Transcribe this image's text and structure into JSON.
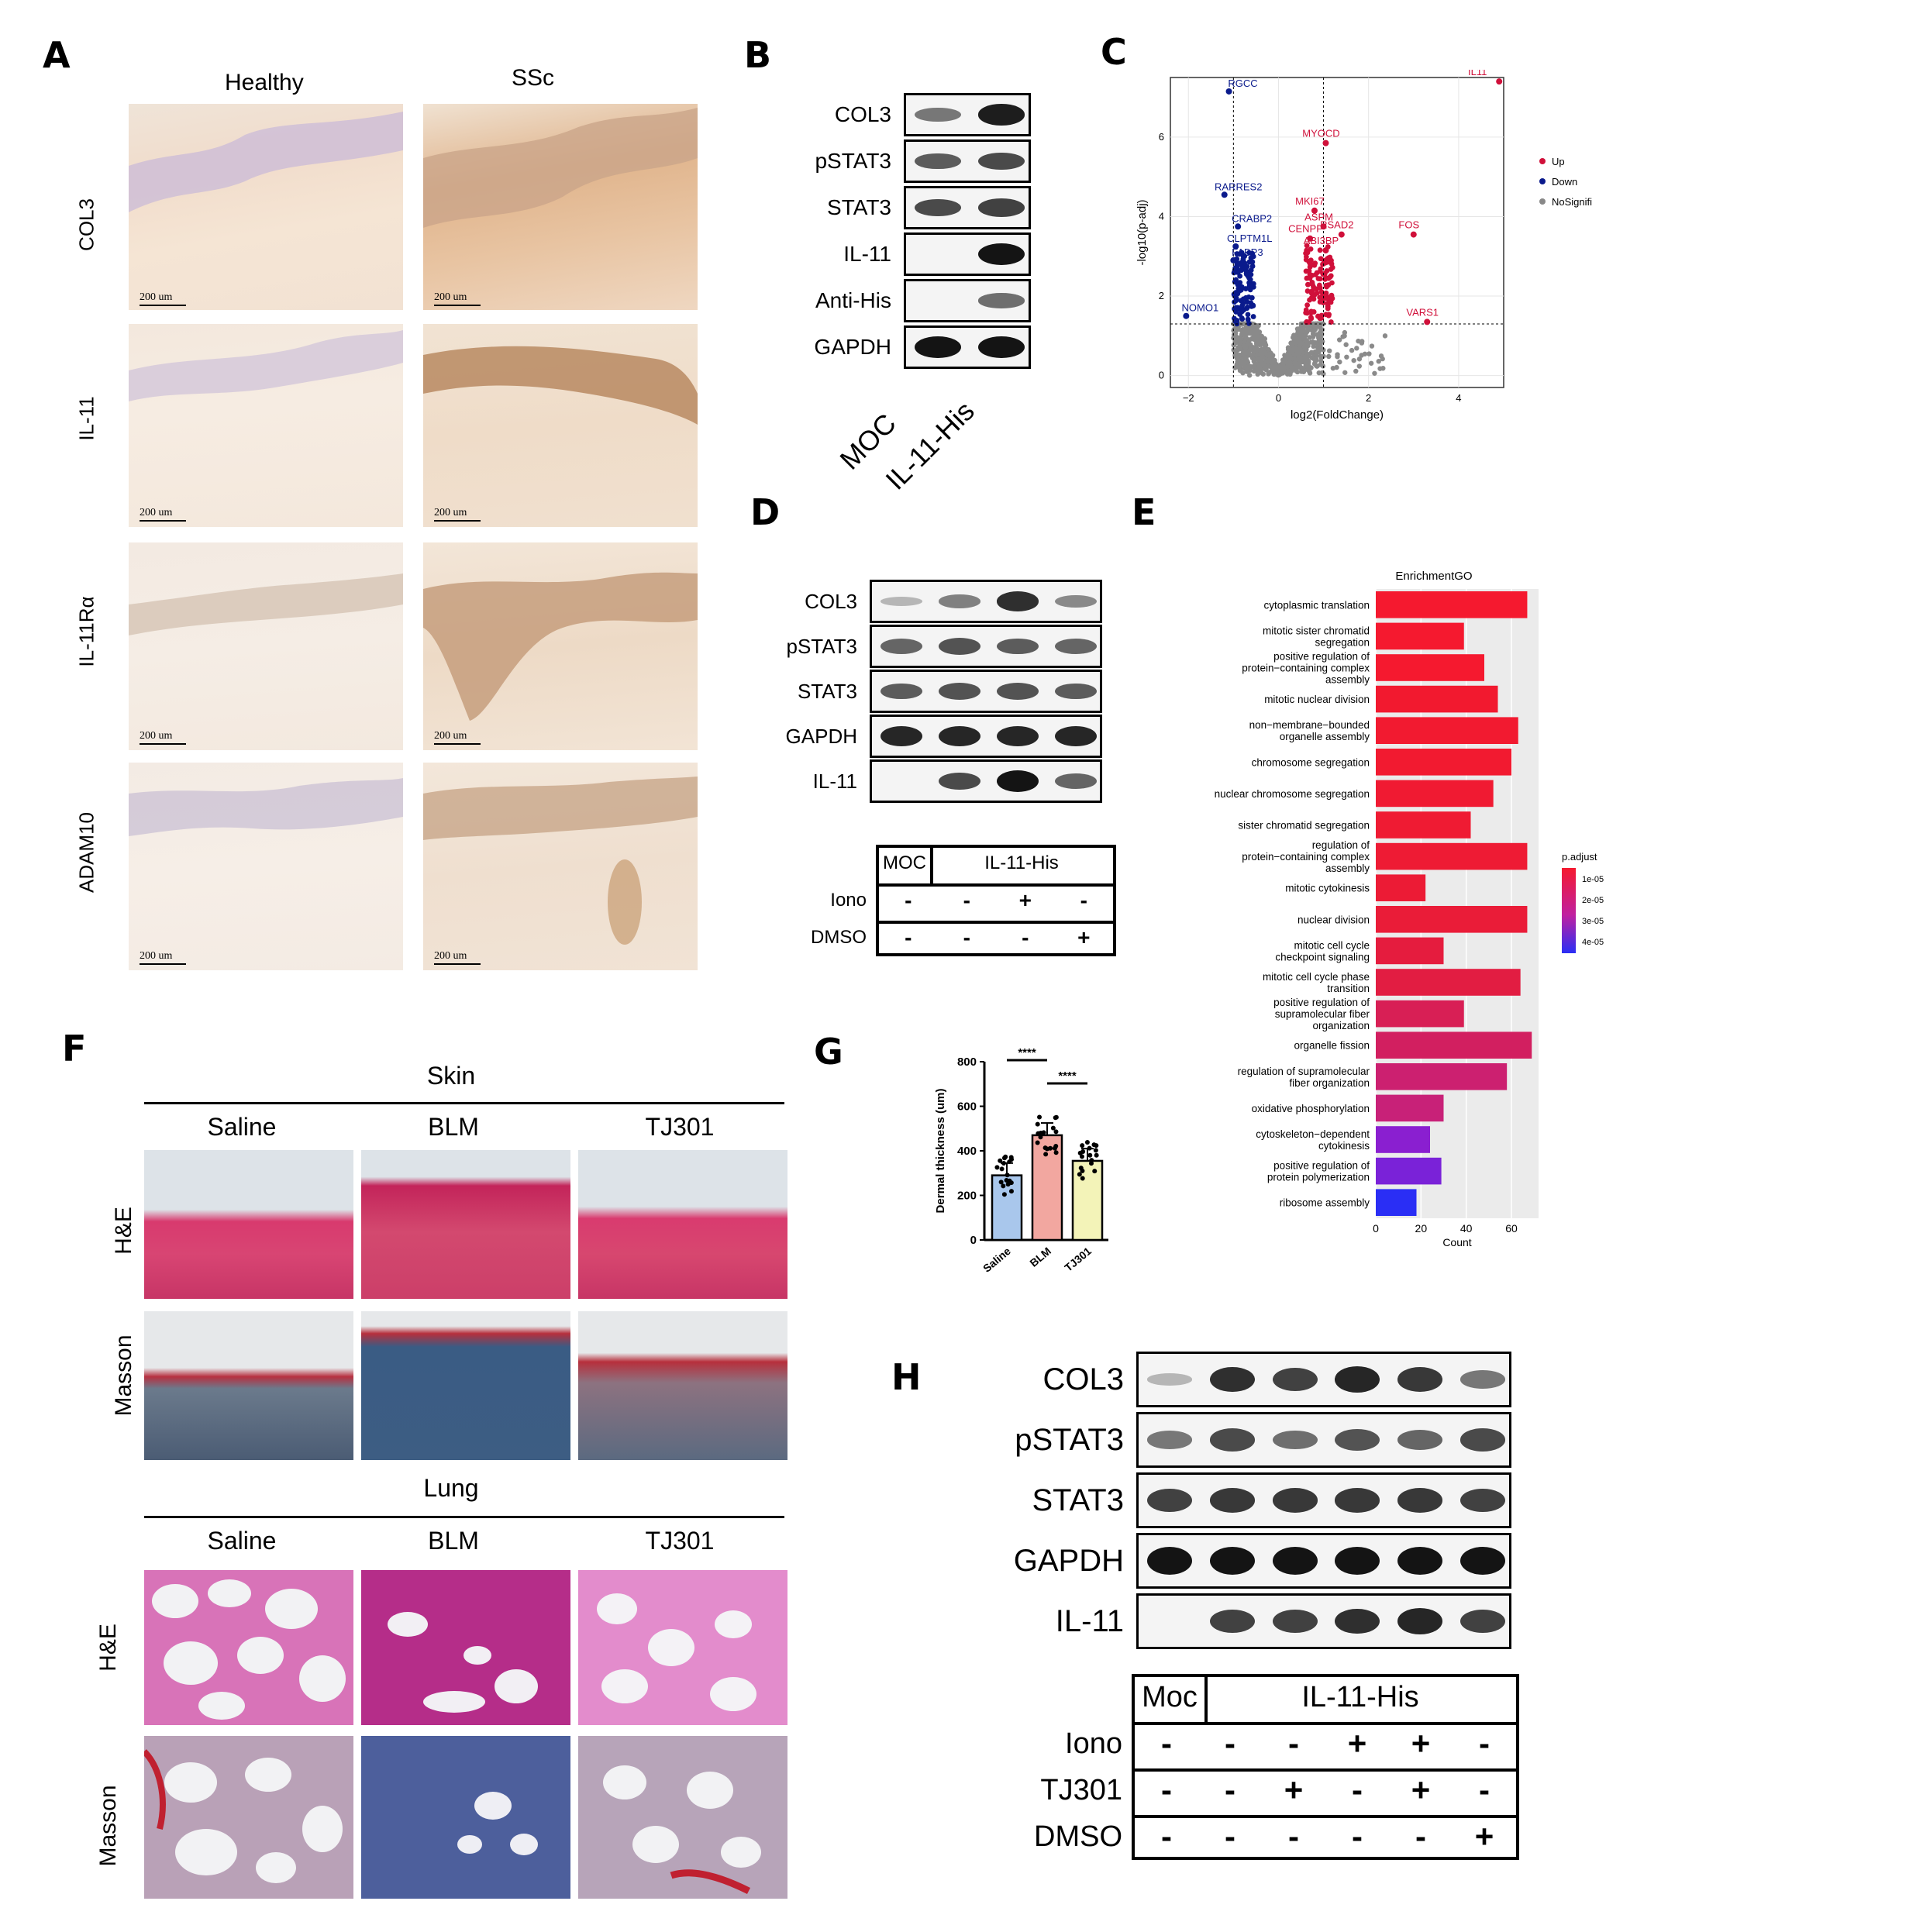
{
  "panels": {
    "A": "A",
    "B": "B",
    "C": "C",
    "D": "D",
    "E": "E",
    "F": "F",
    "G": "G",
    "H": "H"
  },
  "panelA": {
    "columns": [
      "Healthy",
      "SSc"
    ],
    "rows": [
      "COL3",
      "IL-11",
      "IL-11Rα",
      "ADAM10"
    ],
    "scale_bar": "200 um"
  },
  "panelB": {
    "rows": [
      "COL3",
      "pSTAT3",
      "STAT3",
      "IL-11",
      "Anti-His",
      "GAPDH"
    ],
    "lanes": [
      "MOC",
      "IL-11-His"
    ]
  },
  "panelC": {
    "chart_data": {
      "type": "scatter",
      "xlabel": "log2(FoldChange)",
      "ylabel": "-log10(p-adj)",
      "xticks": [
        -2,
        0,
        2,
        4
      ],
      "yticks": [
        0,
        2,
        4,
        6
      ],
      "thresholds": {
        "x": [
          -1,
          1
        ],
        "y": 1.3
      },
      "legend": [
        "Up",
        "Down",
        "NoSignifi"
      ],
      "legend_colors": [
        "#d0103a",
        "#0a1a8c",
        "#888888"
      ],
      "up_labels": [
        {
          "name": "IL11",
          "x": 4.9,
          "y": 7.4
        },
        {
          "name": "MYOCD",
          "x": 1.05,
          "y": 5.85
        },
        {
          "name": "MKI67",
          "x": 0.8,
          "y": 4.15
        },
        {
          "name": "ASPM",
          "x": 1.0,
          "y": 3.75
        },
        {
          "name": "RSAD2",
          "x": 1.4,
          "y": 3.55
        },
        {
          "name": "FOS",
          "x": 3.0,
          "y": 3.55
        },
        {
          "name": "CENPF",
          "x": 0.7,
          "y": 3.45
        },
        {
          "name": "ABI3BP",
          "x": 1.05,
          "y": 3.15
        },
        {
          "name": "VARS1",
          "x": 3.3,
          "y": 1.35
        }
      ],
      "down_labels": [
        {
          "name": "RGCC",
          "x": -1.1,
          "y": 7.15
        },
        {
          "name": "RARRES2",
          "x": -1.2,
          "y": 4.55
        },
        {
          "name": "CRABP2",
          "x": -0.9,
          "y": 3.75
        },
        {
          "name": "CLPTM1L",
          "x": -0.95,
          "y": 3.25
        },
        {
          "name": "FABP3",
          "x": -1.0,
          "y": 2.9
        },
        {
          "name": "NOMO1",
          "x": -2.05,
          "y": 1.5
        }
      ]
    }
  },
  "panelD": {
    "rows": [
      "COL3",
      "pSTAT3",
      "STAT3",
      "GAPDH",
      "IL-11"
    ],
    "table": {
      "moc": "MOC",
      "group": "IL-11-His",
      "iono_label": "Iono",
      "dmso_label": "DMSO",
      "iono": [
        "-",
        "-",
        "+",
        "-"
      ],
      "dmso": [
        "-",
        "-",
        "-",
        "+"
      ]
    }
  },
  "panelE": {
    "chart_data": {
      "type": "bar",
      "title": "EnrichmentGO",
      "xlabel": "Count",
      "xticks": [
        0,
        20,
        40,
        60
      ],
      "legend_title": "p.adjust",
      "legend_ticks": [
        "1e-05",
        "2e-05",
        "3e-05",
        "4e-05"
      ],
      "categories": [
        "cytoplasmic translation",
        "mitotic sister chromatid segregation",
        "positive regulation of protein-containing complex assembly",
        "mitotic nuclear division",
        "non-membrane-bounded organelle assembly",
        "chromosome segregation",
        "nuclear chromosome segregation",
        "sister chromatid segregation",
        "regulation of protein-containing complex assembly",
        "mitotic cytokinesis",
        "nuclear division",
        "mitotic cell cycle checkpoint signaling",
        "mitotic cell cycle phase transition",
        "positive regulation of supramolecular fiber organization",
        "organelle fission",
        "regulation of supramolecular fiber organization",
        "oxidative phosphorylation",
        "cytoskeleton-dependent cytokinesis",
        "positive regulation of protein polymerization",
        "ribosome assembly"
      ],
      "label_lines": [
        [
          "cytoplasmic translation"
        ],
        [
          "mitotic sister chromatid",
          "segregation"
        ],
        [
          "positive regulation of",
          "protein−containing complex",
          "assembly"
        ],
        [
          "mitotic nuclear division"
        ],
        [
          "non−membrane−bounded",
          "organelle assembly"
        ],
        [
          "chromosome segregation"
        ],
        [
          "nuclear chromosome segregation"
        ],
        [
          "sister chromatid segregation"
        ],
        [
          "regulation of",
          "protein−containing complex",
          "assembly"
        ],
        [
          "mitotic cytokinesis"
        ],
        [
          "nuclear division"
        ],
        [
          "mitotic cell cycle",
          "checkpoint signaling"
        ],
        [
          "mitotic cell cycle phase",
          "transition"
        ],
        [
          "positive regulation of",
          "supramolecular fiber",
          "organization"
        ],
        [
          "organelle fission"
        ],
        [
          "regulation of supramolecular",
          "fiber organization"
        ],
        [
          "oxidative phosphorylation"
        ],
        [
          "cytoskeleton−dependent",
          "cytokinesis"
        ],
        [
          "positive regulation of",
          "protein polymerization"
        ],
        [
          "ribosome assembly"
        ]
      ],
      "values": [
        67,
        39,
        48,
        54,
        63,
        60,
        52,
        42,
        67,
        22,
        67,
        30,
        64,
        39,
        69,
        58,
        30,
        24,
        29,
        18
      ],
      "colors": [
        "#f5192f",
        "#f5192f",
        "#f5192f",
        "#f2192f",
        "#f21a30",
        "#f21a30",
        "#f01a32",
        "#ef1b33",
        "#ee1b34",
        "#ec1b35",
        "#ea1c38",
        "#e51c3e",
        "#e21d42",
        "#d81f55",
        "#d21f60",
        "#cc2070",
        "#c82178",
        "#8a1fd0",
        "#7a22d8",
        "#2a2ef5"
      ]
    }
  },
  "panelF": {
    "skin_title": "Skin",
    "lung_title": "Lung",
    "groups": [
      "Saline",
      "BLM",
      "TJ301"
    ],
    "stains": [
      "H&E",
      "Masson"
    ]
  },
  "panelG": {
    "chart_data": {
      "type": "bar",
      "categories": [
        "Saline",
        "BLM",
        "TJ301"
      ],
      "values": [
        290,
        470,
        355
      ],
      "ylabel": "Dermal thickness (um)",
      "ylim": [
        0,
        800
      ],
      "yticks": [
        0,
        200,
        400,
        600,
        800
      ],
      "colors": [
        "#a9c7ec",
        "#f2a7a0",
        "#f3f3b8"
      ],
      "significance": [
        "****",
        "****"
      ]
    }
  },
  "panelH": {
    "rows": [
      "COL3",
      "pSTAT3",
      "STAT3",
      "GAPDH",
      "IL-11"
    ],
    "table": {
      "moc": "Moc",
      "group": "IL-11-His",
      "iono_label": "Iono",
      "tj_label": "TJ301",
      "dmso_label": "DMSO",
      "iono": [
        "-",
        "-",
        "-",
        "+",
        "+",
        "-"
      ],
      "tj301": [
        "-",
        "-",
        "+",
        "-",
        "+",
        "-"
      ],
      "dmso": [
        "-",
        "-",
        "-",
        "-",
        "-",
        "+"
      ]
    }
  }
}
